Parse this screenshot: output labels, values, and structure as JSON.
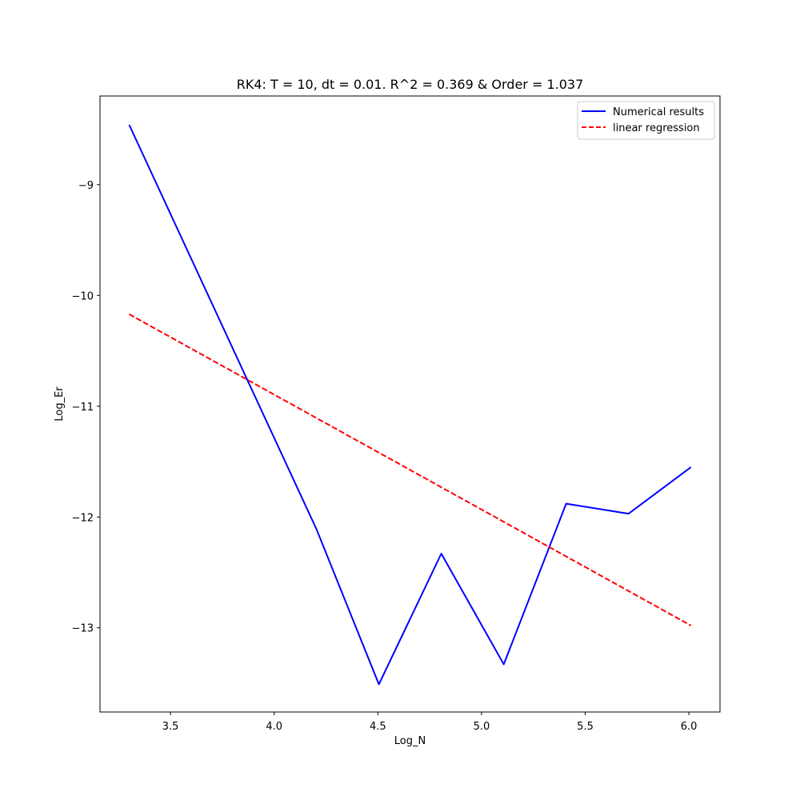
{
  "chart_data": {
    "type": "line",
    "title": "RK4: T = 10, dt = 0.01. R^2 = 0.369 & Order = 1.037",
    "xlabel": "Log_N",
    "ylabel": "Log_Er",
    "xlim": [
      3.16,
      6.15
    ],
    "ylim": [
      -13.76,
      -8.2
    ],
    "xticks": [
      3.5,
      4.0,
      4.5,
      5.0,
      5.5,
      6.0
    ],
    "xtick_labels": [
      "3.5",
      "4.0",
      "4.5",
      "5.0",
      "5.5",
      "6.0"
    ],
    "yticks": [
      -9,
      -10,
      -11,
      -12,
      -13
    ],
    "ytick_labels": [
      "−9",
      "−10",
      "−11",
      "−12",
      "−13"
    ],
    "grid": false,
    "legend_position": "top-right",
    "series": [
      {
        "name": "Numerical results",
        "color": "#0000ff",
        "style": "solid",
        "x": [
          3.301,
          4.204,
          4.505,
          4.806,
          5.107,
          5.408,
          5.709,
          6.01
        ],
        "y": [
          -8.46,
          -12.11,
          -13.51,
          -12.33,
          -13.33,
          -11.88,
          -11.97,
          -11.55
        ]
      },
      {
        "name": "linear regression",
        "color": "#ff0000",
        "style": "dashed",
        "x": [
          3.301,
          6.01
        ],
        "y": [
          -10.17,
          -12.98
        ]
      }
    ]
  }
}
